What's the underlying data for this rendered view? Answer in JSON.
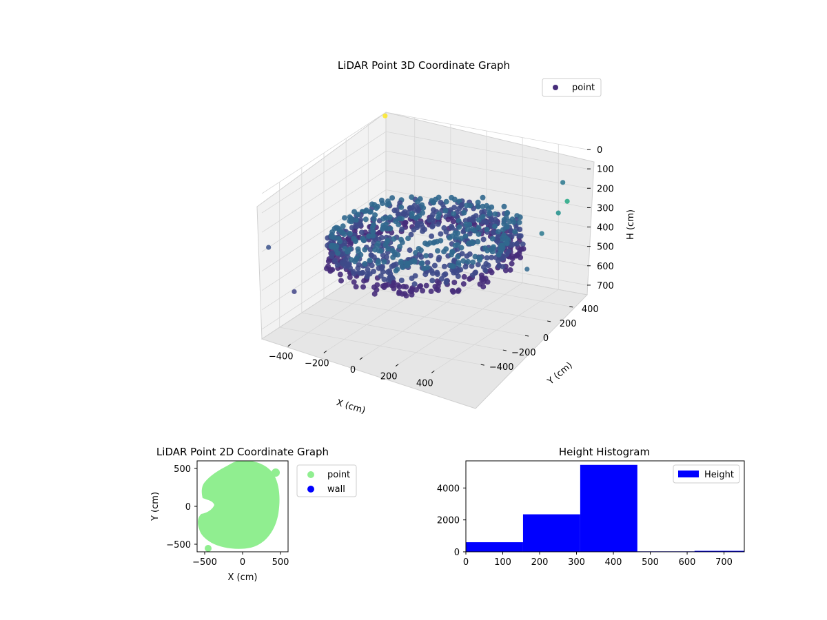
{
  "chart_data": [
    {
      "type": "scatter",
      "projection": "3d",
      "title": "LiDAR Point 3D Coordinate Graph",
      "xlabel": "X (cm)",
      "ylabel": "Y (cm)",
      "zlabel": "H (cm)",
      "x_ticks": [
        "−400",
        "−200",
        "0",
        "200",
        "400"
      ],
      "y_ticks": [
        "−400",
        "−200",
        "0",
        "200",
        "400"
      ],
      "z_ticks": [
        "0",
        "100",
        "200",
        "300",
        "400",
        "500",
        "600",
        "700"
      ],
      "xlim": [
        -560,
        560
      ],
      "ylim": [
        -560,
        560
      ],
      "zlim": [
        0,
        750
      ],
      "z_inverted": true,
      "colormap": "viridis",
      "grid": true,
      "legend": {
        "placement": "top-right",
        "entries": [
          "point"
        ]
      },
      "series": [
        {
          "name": "point",
          "description_points": "dense ring of points radius ~450 cm at heights 300-450 cm plus sparse outliers",
          "outliers": [
            {
              "x": -540,
              "y": 520,
              "z": 0,
              "color": "#fde725"
            },
            {
              "x": 480,
              "y": 470,
              "z": 150,
              "color": "#2a788e"
            },
            {
              "x": 560,
              "y": 380,
              "z": 200,
              "color": "#22a884"
            },
            {
              "x": 560,
              "y": 300,
              "z": 230,
              "color": "#21918c"
            },
            {
              "x": 560,
              "y": 150,
              "z": 280,
              "color": "#2a788e"
            },
            {
              "x": -560,
              "y": -500,
              "z": 300,
              "color": "#3b528b"
            },
            {
              "x": -540,
              "y": -300,
              "z": 600,
              "color": "#414487"
            },
            {
              "x": 540,
              "y": 50,
              "z": 430,
              "color": "#31688e"
            }
          ]
        }
      ]
    },
    {
      "type": "scatter",
      "title": "LiDAR Point 2D Coordinate Graph",
      "xlabel": "X (cm)",
      "ylabel": "Y (cm)",
      "xlim": [
        -600,
        600
      ],
      "ylim": [
        -600,
        600
      ],
      "x_ticks": [
        -500,
        0,
        500
      ],
      "y_ticks": [
        -500,
        0,
        500
      ],
      "x_tick_labels": [
        "−500",
        "0",
        "500"
      ],
      "y_tick_labels": [
        "−500",
        "0",
        "500"
      ],
      "legend": {
        "placement": "outside-right",
        "entries": [
          "point",
          "wall"
        ]
      },
      "series": [
        {
          "name": "point",
          "color": "#90ee90",
          "shape": "filled disc radius ~460 cm centred near origin with a notch on the left"
        },
        {
          "name": "wall",
          "color": "#0000ff",
          "values": []
        }
      ]
    },
    {
      "type": "bar",
      "subtype": "histogram",
      "title": "Height Histogram",
      "bin_edges": [
        0,
        155,
        310,
        465,
        620,
        755
      ],
      "values": [
        600,
        2350,
        5450,
        30,
        60
      ],
      "xlim": [
        0,
        755
      ],
      "ylim": [
        0,
        5700
      ],
      "x_ticks": [
        0,
        100,
        200,
        300,
        400,
        500,
        600,
        700
      ],
      "y_ticks": [
        0,
        2000,
        4000
      ],
      "legend": {
        "placement": "top-right",
        "entries": [
          "Height"
        ]
      },
      "series": [
        {
          "name": "Height",
          "color": "#0000ff"
        }
      ]
    }
  ]
}
